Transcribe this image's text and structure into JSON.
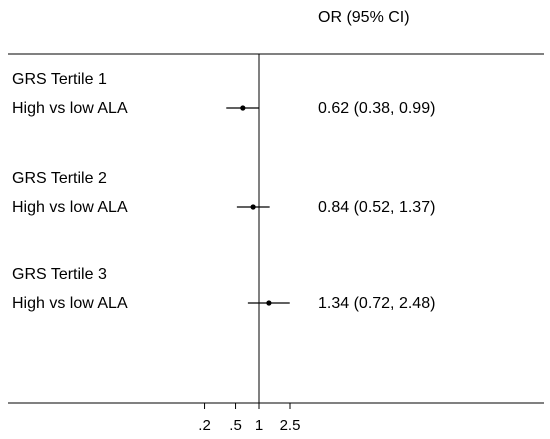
{
  "chart_data": {
    "type": "forest",
    "column_header": "OR (95% CI)",
    "x_scale": "log",
    "reference_value": 1,
    "x_ticks": [
      {
        "value": 0.2,
        "label": ".2"
      },
      {
        "value": 0.5,
        "label": ".5"
      },
      {
        "value": 1,
        "label": "1"
      },
      {
        "value": 2.5,
        "label": "2.5"
      }
    ],
    "groups": [
      {
        "label": "GRS Tertile 1",
        "rows": [
          {
            "label": "High vs low ALA",
            "or": 0.62,
            "ci_low": 0.38,
            "ci_high": 0.99,
            "text": "0.62 (0.38, 0.99)"
          }
        ]
      },
      {
        "label": "GRS Tertile 2",
        "rows": [
          {
            "label": "High vs low ALA",
            "or": 0.84,
            "ci_low": 0.52,
            "ci_high": 1.37,
            "text": "0.84 (0.52, 1.37)"
          }
        ]
      },
      {
        "label": "GRS Tertile 3",
        "rows": [
          {
            "label": "High vs low ALA",
            "or": 1.34,
            "ci_low": 0.72,
            "ci_high": 2.48,
            "text": "1.34 (0.72, 2.48)"
          }
        ]
      }
    ]
  }
}
